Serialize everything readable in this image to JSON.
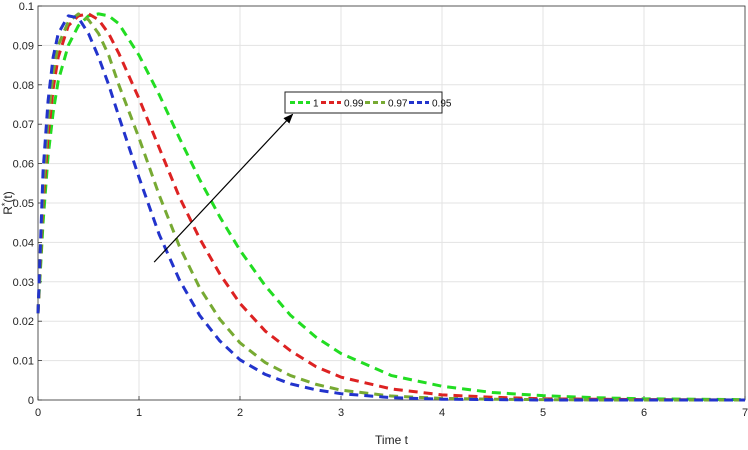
{
  "chart_data": {
    "type": "line",
    "title": "",
    "xlabel": "Time t",
    "ylabel": "R^*(t)",
    "xlim": [
      0,
      7
    ],
    "ylim": [
      0,
      0.1
    ],
    "grid": true,
    "legend_position": "upper-center, inline row",
    "x_ticks": [
      "0",
      "1",
      "2",
      "3",
      "4",
      "5",
      "6",
      "7"
    ],
    "y_ticks": [
      "0",
      "0.01",
      "0.02",
      "0.03",
      "0.04",
      "0.05",
      "0.06",
      "0.07",
      "0.08",
      "0.09",
      "0.1"
    ],
    "line_style": "dashed",
    "x": [
      0,
      0.05,
      0.1,
      0.15,
      0.2,
      0.3,
      0.4,
      0.5,
      0.6,
      0.7,
      0.8,
      1.0,
      1.2,
      1.4,
      1.6,
      1.8,
      2.0,
      2.25,
      2.5,
      2.75,
      3.0,
      3.5,
      4.0,
      4.5,
      5.0,
      5.5,
      6.0,
      7.0
    ],
    "series": [
      {
        "name": "1",
        "color": "#22dd22",
        "values": [
          0.022,
          0.045,
          0.062,
          0.073,
          0.081,
          0.09,
          0.095,
          0.0975,
          0.098,
          0.0975,
          0.0955,
          0.0875,
          0.0775,
          0.0665,
          0.056,
          0.0465,
          0.038,
          0.029,
          0.0215,
          0.016,
          0.0118,
          0.0062,
          0.0035,
          0.0019,
          0.0011,
          0.0006,
          0.0003,
          0.0001
        ]
      },
      {
        "name": "0.99",
        "color": "#dd2222",
        "values": [
          0.022,
          0.05,
          0.067,
          0.079,
          0.087,
          0.095,
          0.0975,
          0.098,
          0.0965,
          0.093,
          0.088,
          0.0765,
          0.064,
          0.0515,
          0.041,
          0.032,
          0.0245,
          0.0175,
          0.0125,
          0.0085,
          0.0058,
          0.0028,
          0.0013,
          0.0007,
          0.0003,
          0.0002,
          0.0001,
          0.0
        ]
      },
      {
        "name": "0.97",
        "color": "#77aa33",
        "values": [
          0.022,
          0.053,
          0.071,
          0.083,
          0.09,
          0.096,
          0.098,
          0.0965,
          0.093,
          0.0875,
          0.08,
          0.0665,
          0.052,
          0.039,
          0.0285,
          0.0205,
          0.0145,
          0.0095,
          0.0062,
          0.004,
          0.0025,
          0.001,
          0.0004,
          0.0002,
          0.0001,
          0.0,
          0.0,
          0.0
        ]
      },
      {
        "name": "0.95",
        "color": "#2233cc",
        "values": [
          0.022,
          0.058,
          0.076,
          0.087,
          0.093,
          0.0975,
          0.097,
          0.093,
          0.087,
          0.08,
          0.072,
          0.0565,
          0.042,
          0.0305,
          0.0215,
          0.015,
          0.0102,
          0.0065,
          0.0041,
          0.0026,
          0.0016,
          0.0006,
          0.0002,
          0.0001,
          0.0,
          0.0,
          0.0,
          0.0
        ]
      }
    ],
    "annotation": {
      "type": "arrow",
      "from": [
        1.15,
        0.035
      ],
      "to": [
        2.52,
        0.0725
      ],
      "color": "#000000"
    }
  }
}
